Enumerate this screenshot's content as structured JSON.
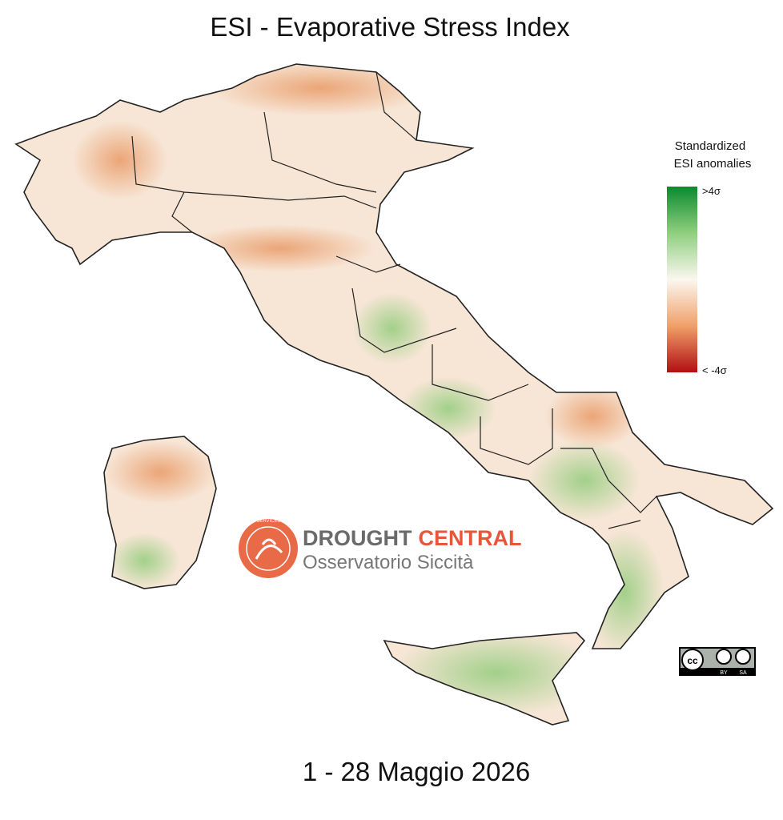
{
  "title": "ESI - Evaporative Stress Index",
  "legend": {
    "title_lines": [
      "Standardized",
      "ESI anomalies"
    ],
    "max_label": ">4σ",
    "min_label": "< -4σ"
  },
  "logo": {
    "ring_text": "CLIMATE SERVICES CENTRE",
    "brand_dark": "DROUGHT",
    "brand_accent": "CENTRAL",
    "subtitle": "Osservatorio Siccità"
  },
  "license": {
    "by": "BY",
    "sa": "SA"
  },
  "period": "1 - 28 Maggio 2026"
}
